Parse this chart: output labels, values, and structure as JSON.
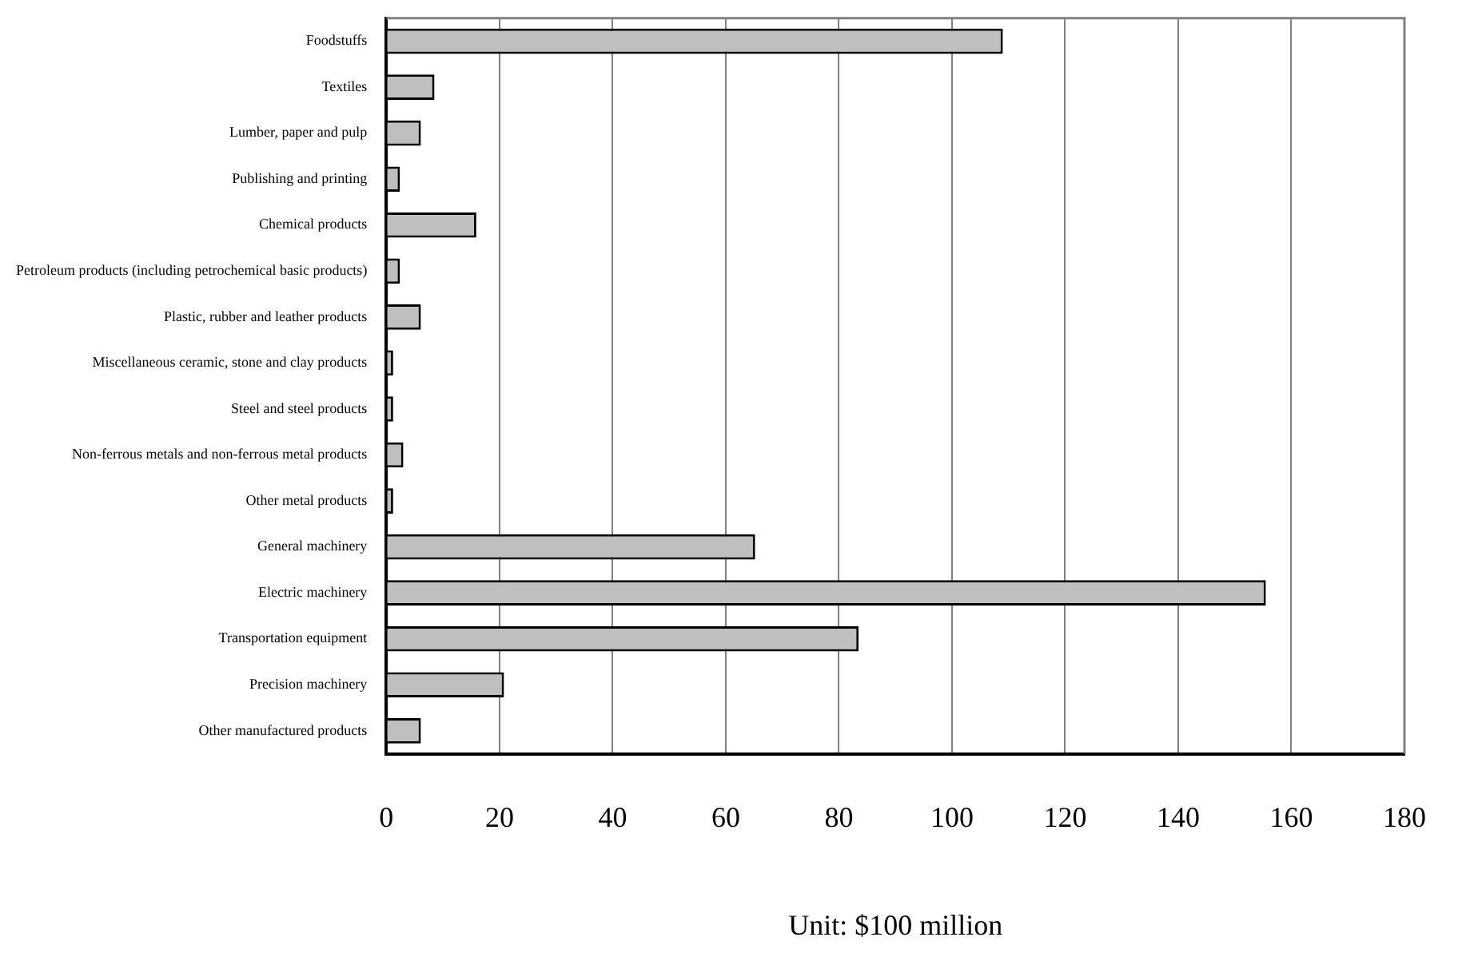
{
  "chart_data": {
    "type": "bar",
    "orientation": "horizontal",
    "xlabel": "Unit: $100 million",
    "categories": [
      "Foodstuffs",
      "Textiles",
      "Lumber, paper and pulp",
      "Publishing and printing",
      "Chemical products",
      "Petroleum products (including petrochemical basic products)",
      "Plastic, rubber and leather products",
      "Miscellaneous ceramic, stone and clay products",
      "Steel and steel products",
      "Non-ferrous metals and non-ferrous metal products",
      "Other metal products",
      "General machinery",
      "Electric machinery",
      "Transportation equipment",
      "Precision machinery",
      "Other manufactured products"
    ],
    "values": [
      109,
      8.5,
      6.1,
      2.4,
      15.9,
      2.4,
      6.1,
      1.2,
      1.2,
      3.0,
      1.2,
      65.2,
      155.5,
      83.5,
      20.8,
      6.1
    ],
    "color": "#bfbfbf",
    "xlim": [
      0,
      180
    ],
    "xticks": [
      0,
      20,
      40,
      60,
      80,
      100,
      120,
      140,
      160,
      180
    ],
    "grid": "x"
  }
}
